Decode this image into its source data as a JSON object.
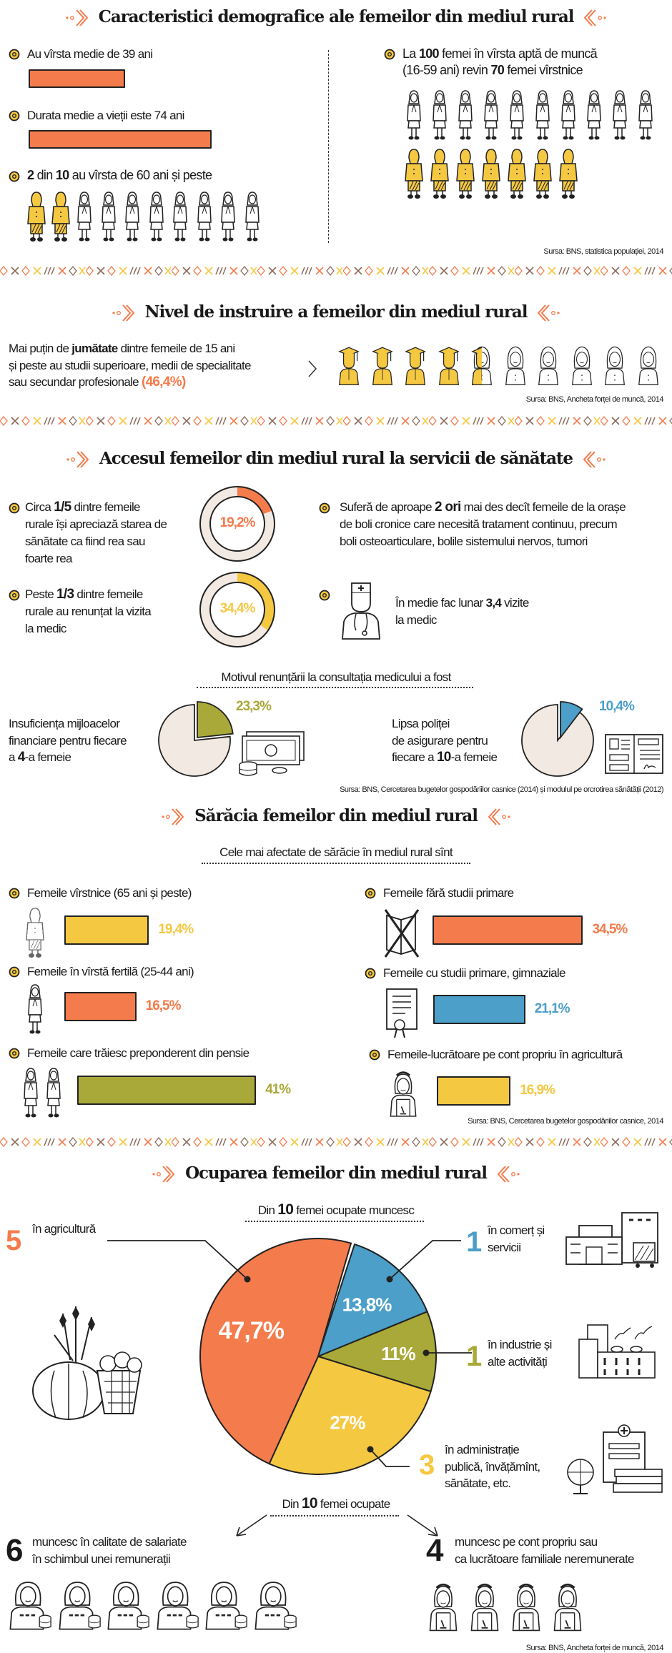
{
  "colors": {
    "orange": "#F47B4B",
    "yellow": "#F5C842",
    "olive": "#A9A93A",
    "blue": "#4B9FC8",
    "beige": "#F2EAE2"
  },
  "demographics": {
    "title": "Caracteristici demografice ale femeilor din mediul rural",
    "avg_age": {
      "text": "Au vîrsta medie de 39 ani",
      "value": 39
    },
    "life": {
      "text": "Durata medie a vieții este 74 ani",
      "value": 74
    },
    "elderly": {
      "n1": "2",
      "t1": " din ",
      "n2": "10",
      "t2": " au vîrsta de 60 ani și peste",
      "highlighted": 2,
      "total": 10
    },
    "ratio": {
      "t1": "La ",
      "n1": "100",
      "t2": " femei în vîrsta aptă de muncă",
      "t3": "(16-59 ani) revin ",
      "n2": "70",
      "t4": " femei vîrstnice",
      "working_icons": 10,
      "elderly_icons": 7
    },
    "source": "Sursa: BNS, statistica populației, 2014"
  },
  "education": {
    "title": "Nivel de instruire a femeilor din mediul rural",
    "l1a": "Mai puțin de ",
    "l1b": "jumătate",
    "l1c": " dintre femeile de 15 ani",
    "l2": "și peste au studii superioare, medii de specialitate",
    "l3a": "sau secundar profesionale ",
    "l3b": "(46,4%)",
    "value": 46.4,
    "icons": 10,
    "source": "Sursa: BNS, Ancheta forței de muncă, 2014"
  },
  "health": {
    "title": "Accesul femeilor din mediul rural la servicii de sănătate",
    "item1": {
      "a": "Circa ",
      "b": "1/5",
      "c": " dintre femeile",
      "l2": "rurale își apreciază starea de",
      "l3": "sănătate ca fiind rea sau",
      "l4": "foarte rea",
      "pct": "19,2%",
      "value": 19.2
    },
    "item2": {
      "a": "Peste ",
      "b": "1/3",
      "c": " dintre femeile",
      "l2": "rurale au renunțat la vizita",
      "l3": "la medic",
      "pct": "34,4%",
      "value": 34.4
    },
    "item3": {
      "a": "Suferă de aproape ",
      "b": "2 ori",
      "c": " mai des decît femeile de la orașe",
      "l2": "de boli cronice care necesită tratament continuu, precum",
      "l3": "boli osteoarticulare, bolile sistemului nervos, tumori"
    },
    "item4": {
      "a": "În medie fac lunar ",
      "b": "3,4",
      "c": " vizite",
      "l2": "la medic"
    },
    "reasons_title": "Motivul renunțării la consultația medicului a fost",
    "reason1": {
      "l1": "Insuficiența mijloacelor",
      "l2": "financiare pentru fiecare",
      "l3a": "a ",
      "l3b": "4",
      "l3c": "-a femeie",
      "pct": "23,3%",
      "value": 23.3
    },
    "reason2": {
      "l1": "Lipsa poliței",
      "l2": "de asigurare pentru",
      "l3a": "fiecare a ",
      "l3b": "10",
      "l3c": "-a femeie",
      "pct": "10,4%",
      "value": 10.4
    },
    "source": "Sursa: BNS, Cercetarea bugetelor gospodăriilor casnice (2014) și modulul pe orcrotirea sănătății (2012)"
  },
  "poverty": {
    "title": "Sărăcia femeilor din mediul rural",
    "subtitle": "Cele mai afectate de sărăcie în mediul rural sînt",
    "items": [
      {
        "label": "Femeile vîrstnice (65 ani și peste)",
        "pct": "19,4%",
        "value": 19.4,
        "color": "#F5C842"
      },
      {
        "label": "Femeile fără studii primare",
        "pct": "34,5%",
        "value": 34.5,
        "color": "#F47B4B"
      },
      {
        "label": "Femeile în vîrstă fertilă (25-44 ani)",
        "pct": "16,5%",
        "value": 16.5,
        "color": "#F47B4B"
      },
      {
        "label": "Femeile cu studii primare, gimnaziale",
        "pct": "21,1%",
        "value": 21.1,
        "color": "#4B9FC8"
      },
      {
        "label": "Femeile care trăiesc preponderent din pensie",
        "pct": "41%",
        "value": 41,
        "color": "#A9A93A"
      },
      {
        "label": "Femeile-lucrătoare pe cont propriu în agricultură",
        "pct": "16,9%",
        "value": 16.9,
        "color": "#F5C842"
      }
    ],
    "source": "Sursa: BNS, Cercetarea bugetelor gospodăriilor casnice, 2014"
  },
  "employment": {
    "title": "Ocuparea femeilor din mediul rural",
    "sub_a": "Din ",
    "sub_b": "10",
    "sub_c": " femei ocupate muncesc",
    "chart_data": {
      "type": "pie",
      "slices": [
        {
          "name": "în comerț și servicii",
          "value": 13.8,
          "label": "13,8%",
          "color": "#4B9FC8"
        },
        {
          "name": "în industrie și alte activități",
          "value": 11,
          "label": "11%",
          "color": "#A9A93A"
        },
        {
          "name": "în administrație publică, învățămînt, sănătate, etc.",
          "value": 27,
          "label": "27%",
          "color": "#F5C842"
        },
        {
          "name": "în agricultură",
          "value": 47.7,
          "label": "47,7%",
          "color": "#F47B4B"
        }
      ]
    },
    "agri": {
      "n": "5",
      "l1": "în agricultură"
    },
    "comm": {
      "n": "1",
      "l1": "în comerț și",
      "l2": "servicii"
    },
    "ind": {
      "n": "1",
      "l1": "în industrie și",
      "l2": "alte activități"
    },
    "adm": {
      "n": "3",
      "l1": "în administrație",
      "l2": "publică, învățămînt,",
      "l3": "sănătate, etc."
    },
    "sub2_a": "Din ",
    "sub2_b": "10",
    "sub2_c": " femei ocupate",
    "employed": {
      "n": "6",
      "l1": "muncesc în calitate de salariate",
      "l2": "în schimbul unei remunerații",
      "icons": 6
    },
    "self": {
      "n": "4",
      "l1": "muncesc pe cont propriu sau",
      "l2": "ca lucrătoare familiale neremunerate",
      "icons": 4
    },
    "source": "Sursa: BNS, Ancheta forței de muncă, 2014"
  }
}
